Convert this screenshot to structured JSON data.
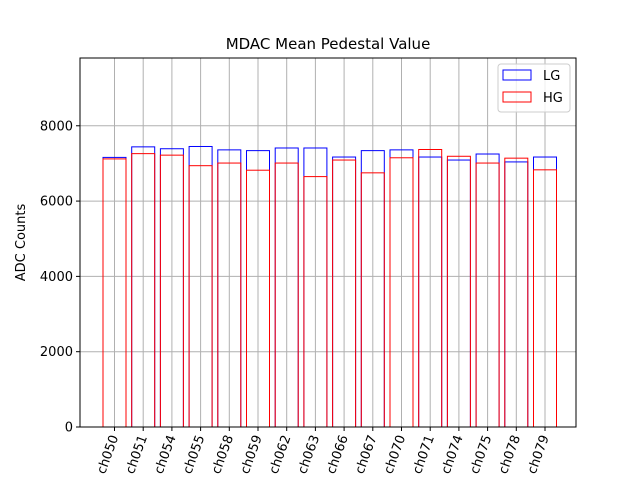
{
  "chart_data": {
    "type": "bar",
    "title": "MDAC Mean Pedestal Value",
    "xlabel": "",
    "ylabel": "ADC Counts",
    "ylim": [
      0,
      9800
    ],
    "yticks": [
      0,
      2000,
      4000,
      6000,
      8000
    ],
    "ytick_labels": [
      "0",
      "2000",
      "4000",
      "6000",
      "8000"
    ],
    "grid": true,
    "legend_position": "top-right",
    "bar_fill": "none",
    "categories": [
      "ch050",
      "ch051",
      "ch054",
      "ch055",
      "ch058",
      "ch059",
      "ch062",
      "ch063",
      "ch066",
      "ch067",
      "ch070",
      "ch071",
      "ch074",
      "ch075",
      "ch078",
      "ch079"
    ],
    "series": [
      {
        "name": "LG",
        "color": "#0000ff",
        "values": [
          7160,
          7440,
          7390,
          7450,
          7360,
          7340,
          7410,
          7410,
          7170,
          7340,
          7360,
          7170,
          7090,
          7250,
          7040,
          7170
        ]
      },
      {
        "name": "HG",
        "color": "#ff0000",
        "values": [
          7120,
          7260,
          7220,
          6940,
          7010,
          6820,
          7010,
          6650,
          7090,
          6750,
          7150,
          7370,
          7190,
          7010,
          7140,
          6830
        ]
      }
    ]
  }
}
